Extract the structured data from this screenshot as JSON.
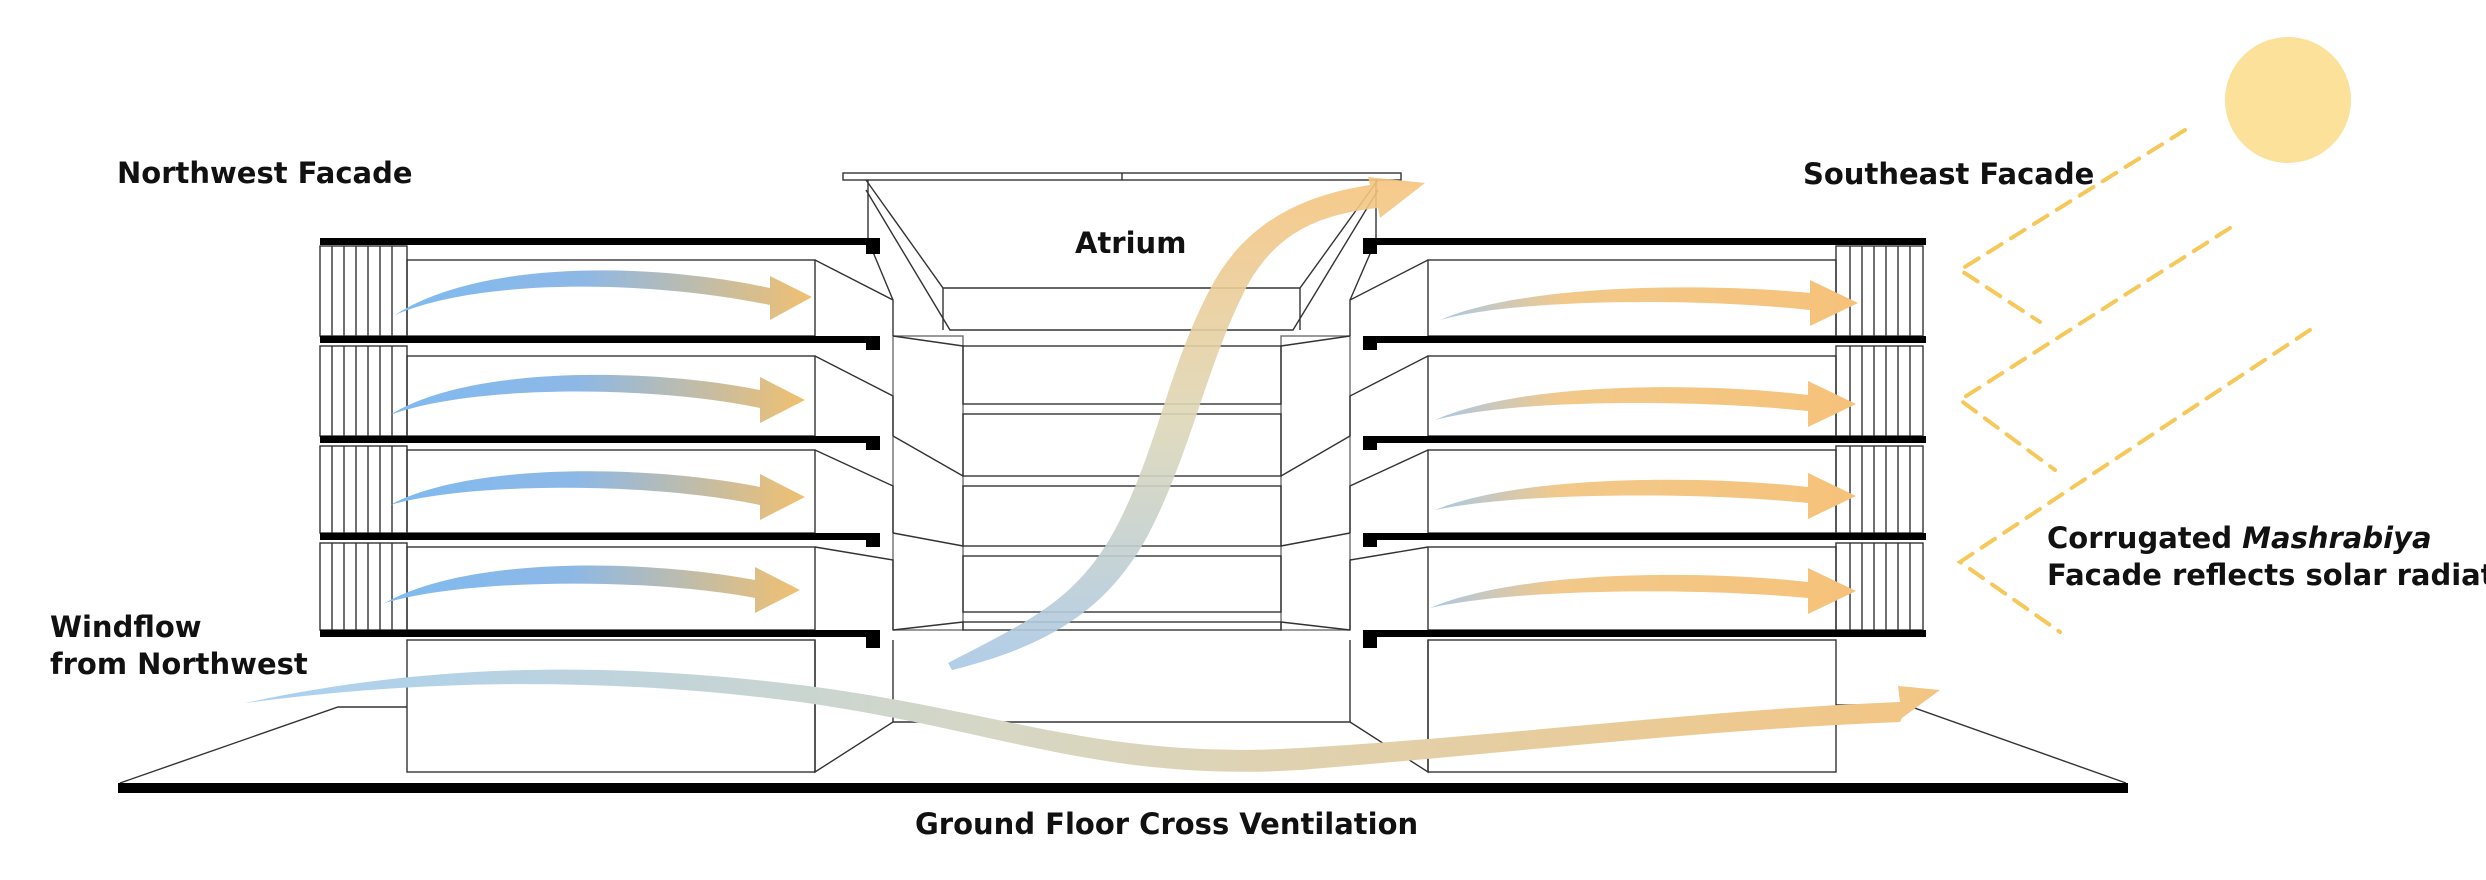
{
  "labels": {
    "northwest_facade": "Northwest Facade",
    "southeast_facade": "Southeast Facade",
    "atrium": "Atrium",
    "windflow_line1": "Windflow",
    "windflow_line2": "from Northwest",
    "mashrabiya_prefix": "Corrugated ",
    "mashrabiya_italic": "Mashrabiya",
    "mashrabiya_line2": "Facade reflects solar radiation",
    "ground_floor": "Ground Floor Cross Ventilation"
  },
  "colors": {
    "wind_cool": "#7fbaf0",
    "wind_warm": "#f4c67a",
    "sun": "#fbe19a",
    "solar_ray": "#f6c85a",
    "slab": "#000000",
    "line": "#333333"
  },
  "icons": {
    "sun": "sun-icon"
  }
}
